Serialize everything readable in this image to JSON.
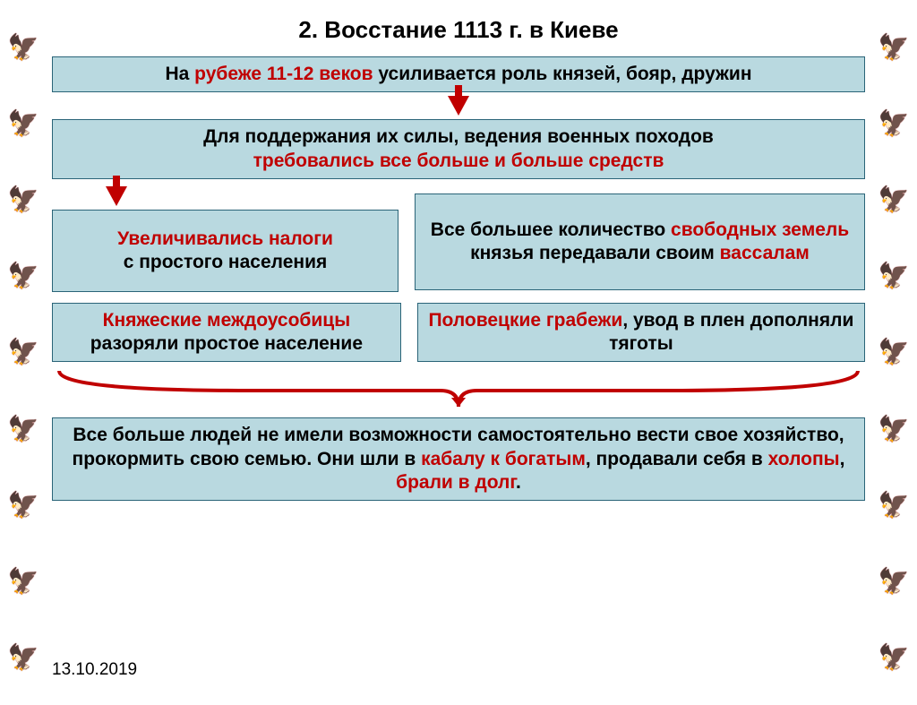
{
  "title": "2. Восстание 1113 г. в Киеве",
  "box1": {
    "pre": "На ",
    "hl": "рубеже 11-12 веков",
    "post": " усиливается роль князей, бояр, дружин"
  },
  "box2": {
    "line1": "Для поддержания их силы, ведения военных походов",
    "hl": "требовались все больше и больше средств"
  },
  "box3a": {
    "t1": "Увеличивались налоги",
    "t2": "с простого населения"
  },
  "box3b": {
    "t1": "Все большее количество ",
    "hl1": "свободных земель",
    "t2": " князья передавали своим ",
    "hl2": "вассалам"
  },
  "box4a": {
    "hl": "Княжеские междоусобицы",
    "t": "разоряли простое население"
  },
  "box4b": {
    "hl": "Половецкие грабежи",
    "t1": ", увод в плен дополняли тяготы"
  },
  "box5": {
    "t1": "Все больше людей не имели возможности самостоятельно вести свое хозяйство, прокормить свою семью. Они шли в ",
    "hl1": "кабалу к богатым",
    "t2": ", продавали себя в ",
    "hl2": "холопы",
    "t3": ", ",
    "hl3": "брали в долг",
    "t4": "."
  },
  "date": "13.10.2019",
  "colors": {
    "box_bg": "#b9d9e0",
    "box_border": "#2a6478",
    "highlight": "#c00000",
    "bracket": "#c00000"
  },
  "emblem_glyph": "🦅",
  "emblem_count_per_side": 9
}
